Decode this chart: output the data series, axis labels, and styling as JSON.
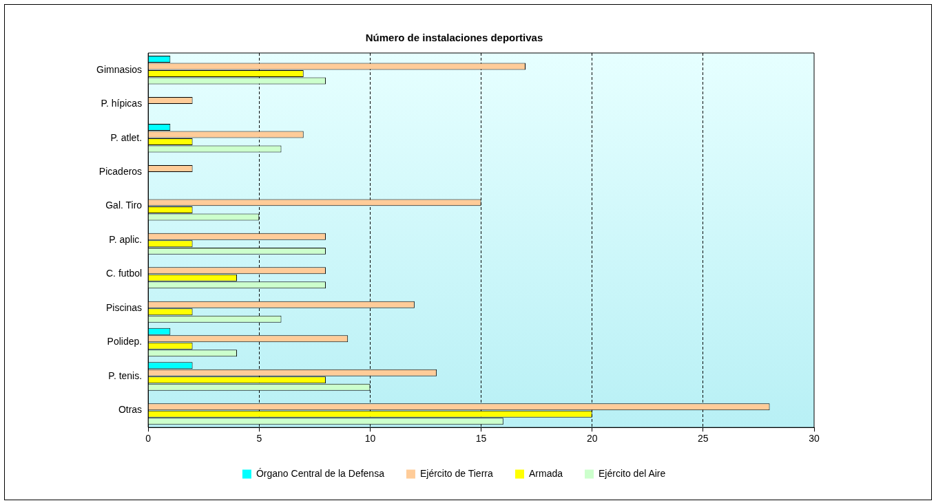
{
  "chart_data": {
    "type": "bar",
    "orientation": "horizontal",
    "title": "Número de instalaciones deportivas",
    "categories": [
      "Gimnasios",
      "P. hípicas",
      "P. atlet.",
      "Picaderos",
      "Gal. Tiro",
      "P. aplic.",
      "C. futbol",
      "Piscinas",
      "Polidep.",
      "P. tenis.",
      "Otras"
    ],
    "series": [
      {
        "name": "Órgano Central de la Defensa",
        "color": "#00ffff",
        "values": [
          1,
          0,
          1,
          0,
          0,
          0,
          0,
          0,
          1,
          2,
          0
        ]
      },
      {
        "name": "Ejército de Tierra",
        "color": "#ffcc99",
        "values": [
          17,
          2,
          7,
          2,
          15,
          8,
          8,
          12,
          9,
          13,
          28
        ]
      },
      {
        "name": "Armada",
        "color": "#ffff00",
        "values": [
          7,
          0,
          2,
          0,
          2,
          2,
          4,
          2,
          2,
          8,
          20
        ]
      },
      {
        "name": "Ejército del Aire",
        "color": "#ccffcc",
        "values": [
          8,
          0,
          6,
          0,
          5,
          8,
          8,
          6,
          4,
          10,
          16
        ]
      }
    ],
    "xlim": [
      0,
      30
    ],
    "xticks": [
      0,
      5,
      10,
      15,
      20,
      25,
      30
    ],
    "grid": "x",
    "line_style": "dashed",
    "legend": "bottom"
  }
}
